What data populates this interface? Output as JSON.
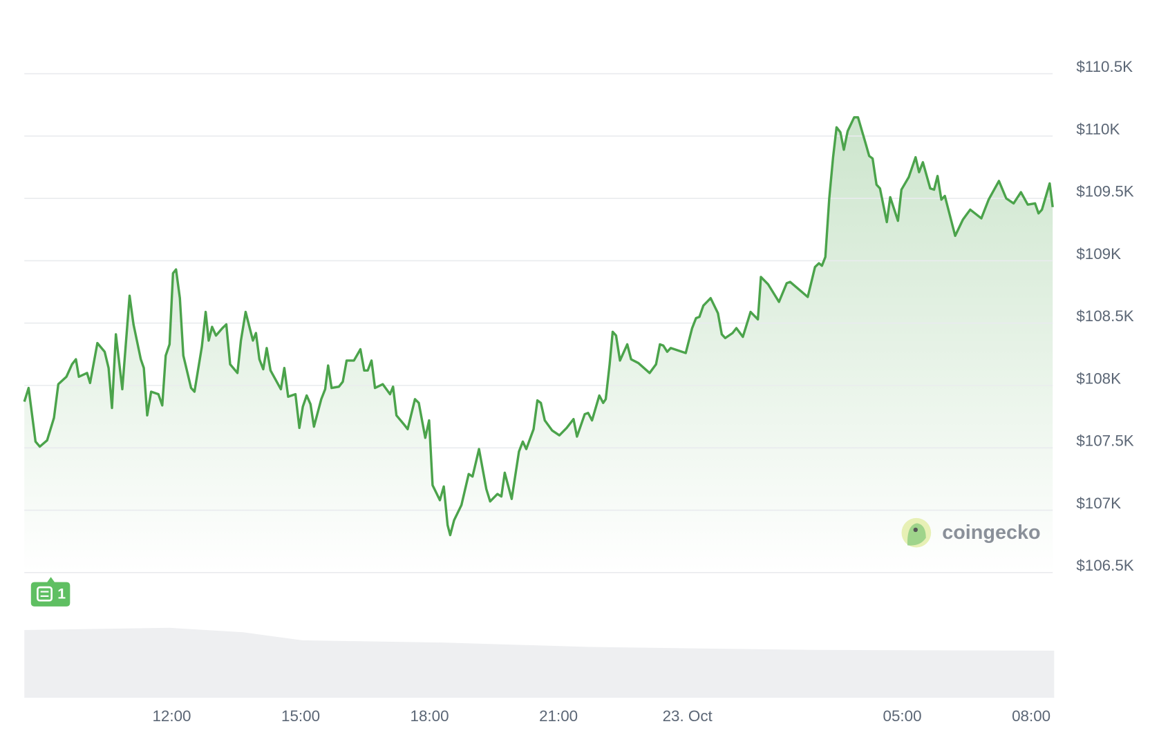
{
  "chart_data": {
    "type": "line",
    "watermark": "coingecko",
    "annotation": "1",
    "color": "#4ba34b",
    "grid": true,
    "xlim": [
      8.57,
      32.5
    ],
    "xticks": [
      {
        "value": 12,
        "label": "12:00"
      },
      {
        "value": 15,
        "label": "15:00"
      },
      {
        "value": 18,
        "label": "18:00"
      },
      {
        "value": 21,
        "label": "21:00"
      },
      {
        "value": 24,
        "label": "23. Oct"
      },
      {
        "value": 29,
        "label": "05:00"
      },
      {
        "value": 32,
        "label": "08:00"
      }
    ],
    "ylim": [
      106500,
      110500
    ],
    "yticks": [
      {
        "value": 106500,
        "label": "$106.5K"
      },
      {
        "value": 107000,
        "label": "$107K"
      },
      {
        "value": 107500,
        "label": "$107.5K"
      },
      {
        "value": 108000,
        "label": "$108K"
      },
      {
        "value": 108500,
        "label": "$108.5K"
      },
      {
        "value": 109000,
        "label": "$109K"
      },
      {
        "value": 109500,
        "label": "$109.5K"
      },
      {
        "value": 110000,
        "label": "$110K"
      },
      {
        "value": 110500,
        "label": "$110.5K"
      }
    ],
    "x": [
      8.57,
      8.67,
      8.83,
      8.93,
      9.1,
      9.26,
      9.36,
      9.55,
      9.68,
      9.77,
      9.84,
      10.03,
      10.1,
      10.27,
      10.44,
      10.53,
      10.61,
      10.7,
      10.85,
      11.02,
      11.11,
      11.28,
      11.35,
      11.43,
      11.52,
      11.69,
      11.78,
      11.86,
      11.95,
      12.03,
      12.1,
      12.19,
      12.27,
      12.45,
      12.53,
      12.7,
      12.79,
      12.86,
      12.94,
      13.03,
      13.18,
      13.27,
      13.36,
      13.53,
      13.61,
      13.72,
      13.89,
      13.96,
      14.04,
      14.13,
      14.21,
      14.3,
      14.54,
      14.62,
      14.71,
      14.88,
      14.97,
      15.05,
      15.14,
      15.23,
      15.31,
      15.48,
      15.57,
      15.64,
      15.72,
      15.89,
      15.98,
      16.07,
      16.24,
      16.39,
      16.48,
      16.56,
      16.65,
      16.73,
      16.91,
      17.08,
      17.15,
      17.23,
      17.4,
      17.49,
      17.66,
      17.75,
      17.9,
      17.99,
      18.07,
      18.24,
      18.33,
      18.42,
      18.48,
      18.57,
      18.74,
      18.91,
      19.0,
      19.15,
      19.32,
      19.41,
      19.58,
      19.67,
      19.75,
      19.91,
      20.08,
      20.17,
      20.25,
      20.42,
      20.51,
      20.59,
      20.68,
      20.85,
      21.02,
      21.19,
      21.35,
      21.43,
      21.61,
      21.69,
      21.78,
      21.95,
      22.04,
      22.1,
      22.19,
      22.26,
      22.34,
      22.43,
      22.6,
      22.69,
      22.86,
      23.12,
      23.27,
      23.36,
      23.44,
      23.53,
      23.61,
      23.96,
      24.11,
      24.2,
      24.28,
      24.37,
      24.54,
      24.71,
      24.8,
      24.88,
      25.05,
      25.14,
      25.29,
      25.47,
      25.64,
      25.71,
      25.88,
      26.13,
      26.31,
      26.39,
      26.63,
      26.8,
      26.97,
      27.06,
      27.13,
      27.21,
      27.3,
      27.39,
      27.47,
      27.56,
      27.64,
      27.73,
      27.88,
      27.97,
      28.14,
      28.23,
      28.31,
      28.4,
      28.48,
      28.64,
      28.72,
      28.9,
      28.98,
      29.15,
      29.31,
      29.39,
      29.48,
      29.65,
      29.74,
      29.82,
      29.91,
      29.99,
      30.23,
      30.41,
      30.58,
      30.84,
      31.01,
      31.25,
      31.42,
      31.59,
      31.76,
      31.92,
      32.09,
      32.17,
      32.25,
      32.43,
      32.5
    ],
    "series": [
      {
        "values": [
          107870,
          107980,
          107550,
          107510,
          107560,
          107740,
          108010,
          108070,
          108170,
          108210,
          108070,
          108100,
          108020,
          108340,
          108270,
          108140,
          107820,
          108410,
          107970,
          108720,
          108490,
          108210,
          108140,
          107760,
          107950,
          107930,
          107840,
          108240,
          108330,
          108900,
          108930,
          108700,
          108240,
          107980,
          107950,
          108310,
          108590,
          108360,
          108470,
          108400,
          108460,
          108490,
          108170,
          108100,
          108360,
          108590,
          108360,
          108420,
          108210,
          108130,
          108300,
          108120,
          107970,
          108140,
          107910,
          107930,
          107660,
          107830,
          107920,
          107850,
          107670,
          107890,
          107970,
          108160,
          107980,
          107990,
          108030,
          108200,
          108200,
          108290,
          108120,
          108120,
          108200,
          107980,
          108010,
          107930,
          107990,
          107760,
          107690,
          107650,
          107890,
          107860,
          107580,
          107720,
          107200,
          107080,
          107190,
          106880,
          106800,
          106920,
          107040,
          107290,
          107270,
          107490,
          107170,
          107070,
          107130,
          107110,
          107300,
          107090,
          107470,
          107550,
          107490,
          107650,
          107880,
          107860,
          107720,
          107640,
          107600,
          107660,
          107730,
          107590,
          107770,
          107780,
          107720,
          107920,
          107860,
          107890,
          108170,
          108430,
          108400,
          108200,
          108330,
          108210,
          108180,
          108100,
          108170,
          108330,
          108320,
          108270,
          108300,
          108260,
          108460,
          108540,
          108550,
          108640,
          108700,
          108580,
          108410,
          108380,
          108420,
          108460,
          108390,
          108590,
          108530,
          108870,
          108810,
          108670,
          108820,
          108830,
          108760,
          108710,
          108950,
          108980,
          108960,
          109030,
          109500,
          109830,
          110070,
          110030,
          109890,
          110040,
          110150,
          110150,
          109950,
          109840,
          109820,
          109610,
          109580,
          109310,
          109510,
          109320,
          109570,
          109670,
          109830,
          109710,
          109790,
          109580,
          109570,
          109680,
          109490,
          109520,
          109200,
          109330,
          109410,
          109340,
          109490,
          109640,
          109500,
          109460,
          109550,
          109450,
          109460,
          109380,
          109410,
          109620,
          109430
        ]
      }
    ]
  }
}
